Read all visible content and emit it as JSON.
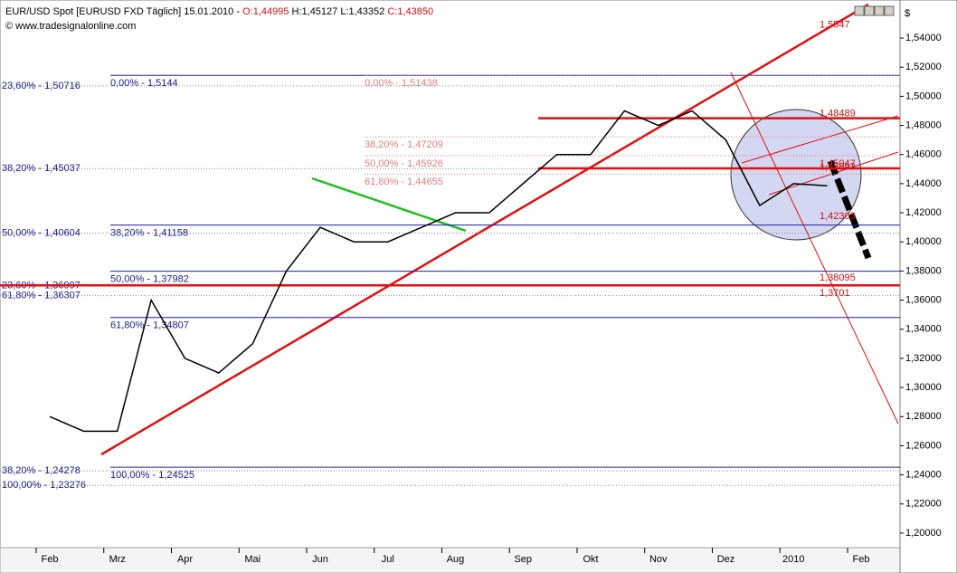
{
  "header": {
    "title": "EUR/USD Spot [EURUSD FXD  Täglich] 15.01.2010 -",
    "open": "O:1,44995",
    "high_low": "H:1,45127 L:1,43352",
    "close": "C:1,43850",
    "source": "© www.tradesignalonline.com",
    "unit": "$"
  },
  "chart_data": {
    "type": "line",
    "categories": [
      "Feb",
      null,
      "Mrz",
      null,
      "Apr",
      null,
      "Mai",
      null,
      "Jun",
      null,
      "Jul",
      null,
      "Aug",
      null,
      "Sep",
      null,
      "Okt",
      null,
      "Nov",
      null,
      "Dez",
      null,
      "2010",
      null,
      "Feb"
    ],
    "series": [
      {
        "color": "#000000",
        "values": [
          1.28,
          1.27,
          1.27,
          1.36,
          1.32,
          1.31,
          1.33,
          1.38,
          1.41,
          1.4,
          1.4,
          1.41,
          1.42,
          1.42,
          1.44,
          1.46,
          1.46,
          1.49,
          1.48,
          1.49,
          1.47,
          1.425,
          1.44,
          1.4385,
          null
        ]
      }
    ],
    "ylim": [
      1.19,
      1.5624
    ],
    "yticks": [
      {
        "value": 1.2,
        "label": "1,20000"
      },
      {
        "value": 1.22,
        "label": "1,22000"
      },
      {
        "value": 1.24,
        "label": "1,24000"
      },
      {
        "value": 1.26,
        "label": "1,26000"
      },
      {
        "value": 1.28,
        "label": "1,28000"
      },
      {
        "value": 1.3,
        "label": "1,30000"
      },
      {
        "value": 1.32,
        "label": "1,32000"
      },
      {
        "value": 1.34,
        "label": "1,34000"
      },
      {
        "value": 1.36,
        "label": "1,36000"
      },
      {
        "value": 1.38,
        "label": "1,38000"
      },
      {
        "value": 1.4,
        "label": "1,40000"
      },
      {
        "value": 1.42,
        "label": "1,42000"
      },
      {
        "value": 1.44,
        "label": "1,44000"
      },
      {
        "value": 1.46,
        "label": "1,46000"
      },
      {
        "value": 1.48,
        "label": "1,48000"
      },
      {
        "value": 1.5,
        "label": "1,50000"
      },
      {
        "value": 1.52,
        "label": "1,52000"
      },
      {
        "value": 1.54,
        "label": "1,54000"
      }
    ],
    "levels": [
      {
        "text": "23,60% - 1,50716",
        "value": 1.50716,
        "group": "left"
      },
      {
        "text": "38,20% - 1,45037",
        "value": 1.45037,
        "group": "left"
      },
      {
        "text": "50,00% - 1,40604",
        "value": 1.40604,
        "group": "left"
      },
      {
        "text": "23,60% - 1,36997",
        "value": 1.36997,
        "group": "left"
      },
      {
        "text": "61,80% - 1,36307",
        "value": 1.36307,
        "group": "left"
      },
      {
        "text": "38,20% - 1,24278",
        "value": 1.24278,
        "group": "left"
      },
      {
        "text": "100,00% - 1,23276",
        "value": 1.23276,
        "group": "left"
      },
      {
        "text": "0,00% - 1,5144",
        "value": 1.5144,
        "group": "blue"
      },
      {
        "text": "38,20% - 1,41158",
        "value": 1.41158,
        "group": "blue"
      },
      {
        "text": "50,00% - 1,37982",
        "value": 1.37982,
        "group": "blue"
      },
      {
        "text": "61,80% - 1,34807",
        "value": 1.34807,
        "group": "blue"
      },
      {
        "text": "100,00% - 1,24525",
        "value": 1.24525,
        "group": "blue"
      },
      {
        "text": "0,00% - 1,51438",
        "value": 1.51438,
        "group": "pink"
      },
      {
        "text": "38,20% - 1,47209",
        "value": 1.47209,
        "group": "pink"
      },
      {
        "text": "50,00% - 1,45926",
        "value": 1.45926,
        "group": "pink"
      },
      {
        "text": "61,80% - 1,44655",
        "value": 1.44655,
        "group": "pink"
      },
      {
        "text": "1,5547",
        "value": 1.5547,
        "group": "red"
      },
      {
        "text": "1,48489",
        "value": 1.48489,
        "group": "red-line"
      },
      {
        "text": "1,45693",
        "value": 1.45693,
        "group": "red"
      },
      {
        "text": "1,45047",
        "value": 1.45047,
        "group": "red-line"
      },
      {
        "text": "1,42303",
        "value": 1.42303,
        "group": "red"
      },
      {
        "text": "1,38095",
        "value": 1.38095,
        "group": "red"
      },
      {
        "text": "1,3701",
        "value": 1.3701,
        "group": "red-full"
      }
    ]
  }
}
